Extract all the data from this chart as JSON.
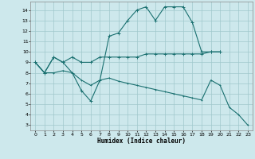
{
  "xlabel": "Humidex (Indice chaleur)",
  "xlim": [
    -0.5,
    23.5
  ],
  "ylim": [
    2.5,
    14.8
  ],
  "yticks": [
    3,
    4,
    5,
    6,
    7,
    8,
    9,
    10,
    11,
    12,
    13,
    14
  ],
  "xticks": [
    0,
    1,
    2,
    3,
    4,
    5,
    6,
    7,
    8,
    9,
    10,
    11,
    12,
    13,
    14,
    15,
    16,
    17,
    18,
    19,
    20,
    21,
    22,
    23
  ],
  "bg_color": "#cde8ec",
  "grid_color": "#a0c8cc",
  "line_color": "#1a7070",
  "curves": [
    {
      "x": [
        0,
        1,
        2,
        3,
        4,
        5,
        6,
        7,
        8,
        9,
        10,
        11,
        12,
        13,
        14,
        15,
        16,
        17,
        18,
        19,
        20
      ],
      "y": [
        9,
        8,
        9.5,
        9,
        8,
        6.3,
        5.3,
        7.3,
        11.5,
        11.8,
        13,
        14,
        14.3,
        13,
        14.3,
        14.3,
        14.3,
        12.8,
        10,
        10,
        10
      ]
    },
    {
      "x": [
        0,
        1,
        2,
        3,
        4,
        5,
        6,
        7,
        8,
        9,
        10,
        11,
        12,
        13,
        14,
        15,
        16,
        17,
        18,
        19,
        20
      ],
      "y": [
        9,
        8,
        9.5,
        9,
        9.5,
        9,
        9,
        9.5,
        9.5,
        9.5,
        9.5,
        9.5,
        9.8,
        9.8,
        9.8,
        9.8,
        9.8,
        9.8,
        9.8,
        10,
        10
      ]
    },
    {
      "x": [
        0,
        1,
        2,
        3,
        4,
        5,
        6,
        7,
        8,
        9,
        10,
        11,
        12,
        13,
        14,
        15,
        16,
        17,
        18,
        19,
        20,
        21,
        22,
        23
      ],
      "y": [
        9,
        8,
        8,
        8.2,
        8,
        7.3,
        6.8,
        7.3,
        7.5,
        7.2,
        7.0,
        6.8,
        6.6,
        6.4,
        6.2,
        6.0,
        5.8,
        5.6,
        5.4,
        7.3,
        6.8,
        4.7,
        4.0,
        3.0
      ]
    }
  ]
}
